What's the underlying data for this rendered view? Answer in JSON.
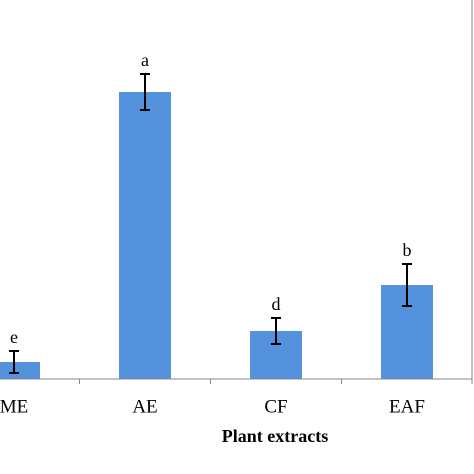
{
  "chart_data": {
    "type": "bar",
    "x_label": "Plant extracts",
    "categories": [
      "ME",
      "AE",
      "CF",
      "EAF"
    ],
    "values": [
      17,
      287,
      48,
      94
    ],
    "errors": [
      11,
      18,
      13,
      21
    ],
    "significance_letters": [
      "e",
      "a",
      "d",
      "b"
    ],
    "color": "#5592dd",
    "ylim": [
      0,
      300
    ]
  }
}
